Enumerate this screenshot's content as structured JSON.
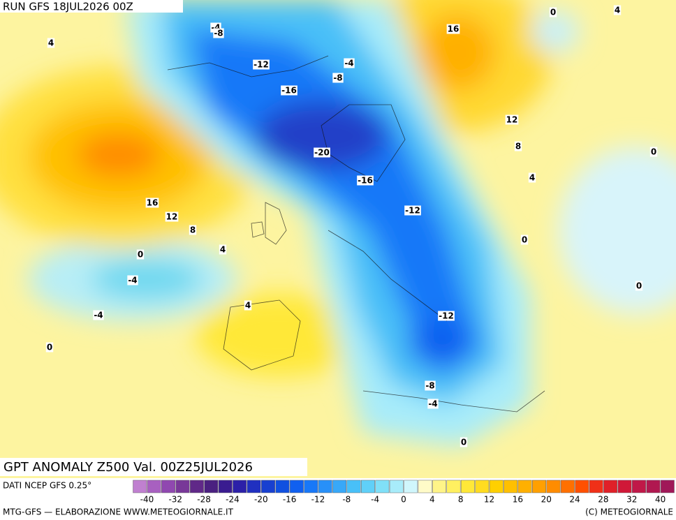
{
  "header": {
    "run": "RUN GFS 18JUL2026 00Z",
    "title": "GPT ANOMALY Z500 Val. 00Z25JUL2026"
  },
  "map": {
    "contour_labels": [
      -4,
      -8,
      0,
      4,
      16,
      4,
      -12,
      -4,
      -8,
      -16,
      12,
      8,
      0,
      -20,
      4,
      -16,
      16,
      12,
      -12,
      8,
      0,
      4,
      0,
      -4,
      0,
      4,
      -12,
      -4,
      0,
      -8,
      -4,
      0
    ]
  },
  "colorbar": {
    "source": "DATI NCEP GFS 0.25°",
    "ticks": [
      -40,
      -32,
      -28,
      -24,
      -20,
      -16,
      -12,
      -8,
      -4,
      0,
      4,
      8,
      12,
      16,
      20,
      24,
      28,
      32,
      40
    ],
    "colors": [
      "#c080d0",
      "#a860c0",
      "#9048b0",
      "#783898",
      "#602888",
      "#4a2080",
      "#3a1c90",
      "#2c20a8",
      "#2030c0",
      "#1840d0",
      "#1050e0",
      "#1060f0",
      "#1878f8",
      "#2890f8",
      "#38a8f8",
      "#48c0f8",
      "#60d0f8",
      "#80e0f8",
      "#a8ecfa",
      "#d0f6fc",
      "#fffbc8",
      "#fff488",
      "#fff060",
      "#ffe838",
      "#ffdc20",
      "#ffd000",
      "#ffc000",
      "#ffb000",
      "#ffa000",
      "#ff8c00",
      "#ff7000",
      "#ff5000",
      "#f03018",
      "#e02028",
      "#d01838",
      "#c01848",
      "#b01850",
      "#a01858"
    ]
  },
  "footer": {
    "credit": "MTG-GFS — ELABORAZIONE WWW.METEOGIORNALE.IT",
    "copyright": "(C) METEOGIORNALE"
  }
}
